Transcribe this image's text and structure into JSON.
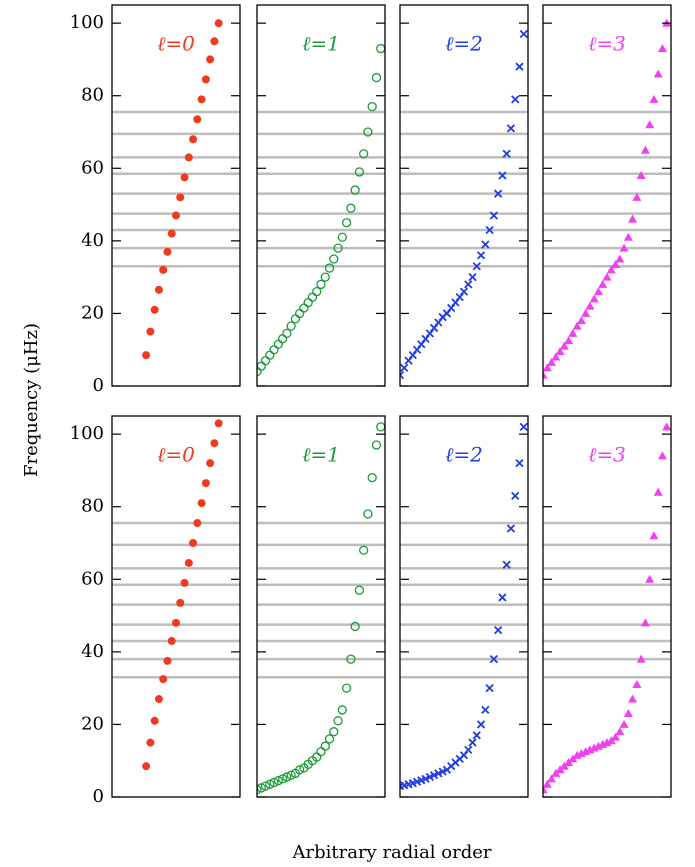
{
  "ylabel": "Frequency (μHz)",
  "xlabel": "Arbitrary radial order",
  "hlines": [
    33,
    38,
    43,
    47.5,
    53,
    58.5,
    63,
    69.5,
    75.5
  ],
  "chart_data": [
    {
      "type": "scatter",
      "title": "ℓ=0",
      "color": "#f03a1f",
      "marker": "dot",
      "x": [
        8,
        9,
        10,
        11,
        12,
        13,
        14,
        15,
        16,
        17,
        18,
        19,
        20,
        21,
        22,
        23,
        24,
        25
      ],
      "values": [
        8.5,
        15,
        21,
        26.5,
        32,
        37,
        42,
        47,
        52,
        57.5,
        63,
        68,
        73.5,
        79,
        84.5,
        90,
        95,
        100
      ],
      "xlim": [
        0,
        30
      ],
      "ylim": [
        0,
        105
      ],
      "yticks": [
        0,
        20,
        40,
        60,
        80,
        100
      ]
    },
    {
      "type": "scatter",
      "title": "ℓ=1",
      "color": "#1a9a3a",
      "marker": "ring",
      "x": [
        0,
        1,
        2,
        3,
        4,
        5,
        6,
        7,
        8,
        9,
        10,
        11,
        12,
        13,
        14,
        15,
        16,
        17,
        18,
        19,
        20,
        21,
        22,
        23,
        24,
        25,
        26,
        27,
        28,
        29
      ],
      "values": [
        4,
        5.5,
        7,
        8.5,
        10,
        11.5,
        13,
        14.5,
        16.5,
        18.5,
        20,
        21.5,
        23,
        24.5,
        26,
        28,
        30,
        32.5,
        35,
        38,
        41,
        45,
        49,
        54,
        59,
        64,
        70,
        77,
        85,
        93
      ],
      "xlim": [
        0,
        30
      ],
      "ylim": [
        0,
        105
      ],
      "yticks": [
        0,
        20,
        40,
        60,
        80,
        100
      ]
    },
    {
      "type": "scatter",
      "title": "ℓ=2",
      "color": "#1f3de0",
      "marker": "cross",
      "x": [
        0,
        1,
        2,
        3,
        4,
        5,
        6,
        7,
        8,
        9,
        10,
        11,
        12,
        13,
        14,
        15,
        16,
        17,
        18,
        19,
        20,
        21,
        22,
        23,
        24,
        25,
        26,
        27,
        28,
        29
      ],
      "values": [
        3,
        5,
        7,
        8.5,
        10,
        11.5,
        13,
        14.5,
        16,
        17.5,
        19,
        20,
        21.5,
        23,
        24.5,
        26,
        28,
        30,
        33,
        36,
        39,
        43,
        47,
        53,
        58,
        64,
        71,
        79,
        88,
        97
      ],
      "xlim": [
        0,
        30
      ],
      "ylim": [
        0,
        105
      ],
      "yticks": [
        0,
        20,
        40,
        60,
        80,
        100
      ]
    },
    {
      "type": "scatter",
      "title": "ℓ=3",
      "color": "#f23ff0",
      "marker": "triangle",
      "x": [
        0,
        1,
        2,
        3,
        4,
        5,
        6,
        7,
        8,
        9,
        10,
        11,
        12,
        13,
        14,
        15,
        16,
        17,
        18,
        19,
        20,
        21,
        22,
        23,
        24,
        25,
        26,
        27,
        28,
        29
      ],
      "values": [
        3,
        5,
        6.5,
        8,
        9.5,
        11,
        12.5,
        14.5,
        16.5,
        18,
        20,
        22,
        24,
        26,
        28,
        30,
        32,
        33.5,
        35,
        38,
        41,
        46,
        52,
        58,
        65,
        72,
        79,
        86,
        93,
        100
      ],
      "xlim": [
        0,
        30
      ],
      "ylim": [
        0,
        105
      ],
      "yticks": [
        0,
        20,
        40,
        60,
        80,
        100
      ]
    },
    {
      "type": "scatter",
      "title": "ℓ=0",
      "color": "#f03a1f",
      "marker": "dot",
      "x": [
        8,
        9,
        10,
        11,
        12,
        13,
        14,
        15,
        16,
        17,
        18,
        19,
        20,
        21,
        22,
        23,
        24,
        25
      ],
      "values": [
        8.5,
        15,
        21,
        27,
        32.5,
        37.5,
        43,
        48,
        53.5,
        59,
        64.5,
        70,
        75.5,
        81,
        86.5,
        92,
        97.5,
        103
      ],
      "xlim": [
        0,
        30
      ],
      "ylim": [
        0,
        105
      ],
      "yticks": [
        0,
        20,
        40,
        60,
        80,
        100
      ]
    },
    {
      "type": "scatter",
      "title": "ℓ=1",
      "color": "#1a9a3a",
      "marker": "ring",
      "x": [
        0,
        1,
        2,
        3,
        4,
        5,
        6,
        7,
        8,
        9,
        10,
        11,
        12,
        13,
        14,
        15,
        16,
        17,
        18,
        19,
        20,
        21,
        22,
        23,
        24,
        25,
        26,
        27,
        28,
        29
      ],
      "values": [
        2,
        2.5,
        3,
        3.5,
        4,
        4.5,
        5,
        5.5,
        6,
        6.5,
        7.5,
        8,
        9,
        10,
        11,
        12.5,
        14,
        16,
        18,
        21,
        24,
        30,
        38,
        47,
        57,
        68,
        78,
        88,
        97,
        102
      ],
      "xlim": [
        0,
        30
      ],
      "ylim": [
        0,
        105
      ],
      "yticks": [
        0,
        20,
        40,
        60,
        80,
        100
      ]
    },
    {
      "type": "scatter",
      "title": "ℓ=2",
      "color": "#1f3de0",
      "marker": "cross",
      "x": [
        0,
        1,
        2,
        3,
        4,
        5,
        6,
        7,
        8,
        9,
        10,
        11,
        12,
        13,
        14,
        15,
        16,
        17,
        18,
        19,
        20,
        21,
        22,
        23,
        24,
        25,
        26,
        27,
        28,
        29
      ],
      "values": [
        3,
        3.2,
        3.5,
        3.8,
        4.2,
        4.6,
        5,
        5.5,
        6,
        6.5,
        7,
        7.5,
        8.5,
        9.5,
        10.5,
        11.5,
        13,
        15,
        17,
        20,
        24,
        30,
        38,
        46,
        55,
        64,
        74,
        83,
        92,
        102
      ],
      "xlim": [
        0,
        30
      ],
      "ylim": [
        0,
        105
      ],
      "yticks": [
        0,
        20,
        40,
        60,
        80,
        100
      ]
    },
    {
      "type": "scatter",
      "title": "ℓ=3",
      "color": "#f23ff0",
      "marker": "triangle",
      "x": [
        0,
        1,
        2,
        3,
        4,
        5,
        6,
        7,
        8,
        9,
        10,
        11,
        12,
        13,
        14,
        15,
        16,
        17,
        18,
        19,
        20,
        21,
        22,
        23,
        24,
        25,
        26,
        27,
        28,
        29
      ],
      "values": [
        2,
        3.5,
        5,
        6.5,
        7.5,
        8.5,
        9.5,
        10.5,
        11.5,
        12,
        12.5,
        13,
        13.5,
        14,
        14.5,
        15,
        15.5,
        16.5,
        18,
        20,
        23,
        27,
        31,
        38,
        48,
        60,
        72,
        84,
        94,
        102
      ],
      "xlim": [
        0,
        30
      ],
      "ylim": [
        0,
        105
      ],
      "yticks": [
        0,
        20,
        40,
        60,
        80,
        100
      ]
    }
  ]
}
